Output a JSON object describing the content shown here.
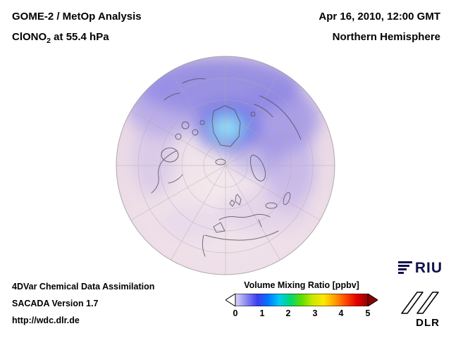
{
  "header": {
    "title": "GOME-2 / MetOp Analysis",
    "chem": {
      "prefix": "ClONO",
      "sub": "2",
      "suffix": " at 55.4 hPa"
    },
    "datetime": "Apr 16, 2010, 12:00 GMT",
    "region": "Northern Hemisphere"
  },
  "globe": {
    "view": "Northern Hemisphere polar projection",
    "colors": {
      "base_pink": "#eddde7",
      "vortex_blue": "#7d78e0",
      "core_cyan": "#7fd9f4",
      "coastline": "#50505c",
      "graticule": "#b0aab4"
    }
  },
  "colorbar": {
    "title": "Volume Mixing Ratio [ppbv]",
    "ticks": [
      "0",
      "1",
      "2",
      "3",
      "4",
      "5"
    ],
    "min": 0,
    "max": 5,
    "gradient": [
      "#ddd8f8",
      "#8888f0",
      "#3c3cf0",
      "#0078ff",
      "#00ccf0",
      "#00d870",
      "#60dc00",
      "#c8e800",
      "#ffe800",
      "#ffa000",
      "#ff4800",
      "#e00000",
      "#990000"
    ],
    "arrow_left_color": "#ffffff",
    "arrow_right_color": "#8b0000"
  },
  "footer": {
    "line1": "4DVar Chemical Data Assimilation",
    "line2": "SACADA Version 1.7",
    "line3": "http://wdc.dlr.de"
  },
  "logos": {
    "riu": "RIU",
    "dlr": "DLR"
  }
}
